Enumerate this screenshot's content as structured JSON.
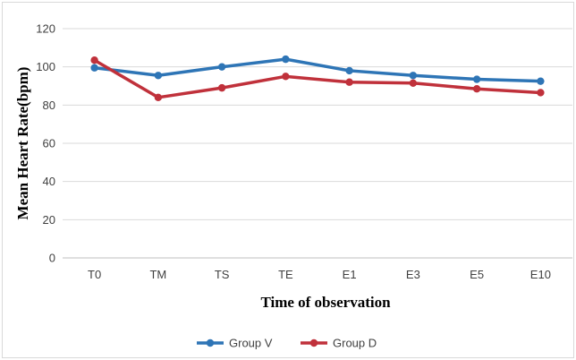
{
  "chart_data": {
    "type": "line",
    "title": "",
    "xlabel": "Time of observation",
    "ylabel": "Mean Heart Rate(bpm)",
    "categories": [
      "T0",
      "TM",
      "TS",
      "TE",
      "E1",
      "E3",
      "E5",
      "E10"
    ],
    "ylim": [
      0,
      120
    ],
    "yticks": [
      0,
      20,
      40,
      60,
      80,
      100,
      120
    ],
    "grid": "horizontal",
    "legend_position": "bottom",
    "series": [
      {
        "name": "Group V",
        "color": "#2e75b6",
        "values": [
          99.5,
          95.5,
          100,
          104,
          98,
          95.5,
          93.5,
          92.5
        ]
      },
      {
        "name": "Group D",
        "color": "#c0313b",
        "values": [
          103.5,
          84,
          89,
          95,
          92,
          91.5,
          88.5,
          86.5
        ]
      }
    ]
  }
}
